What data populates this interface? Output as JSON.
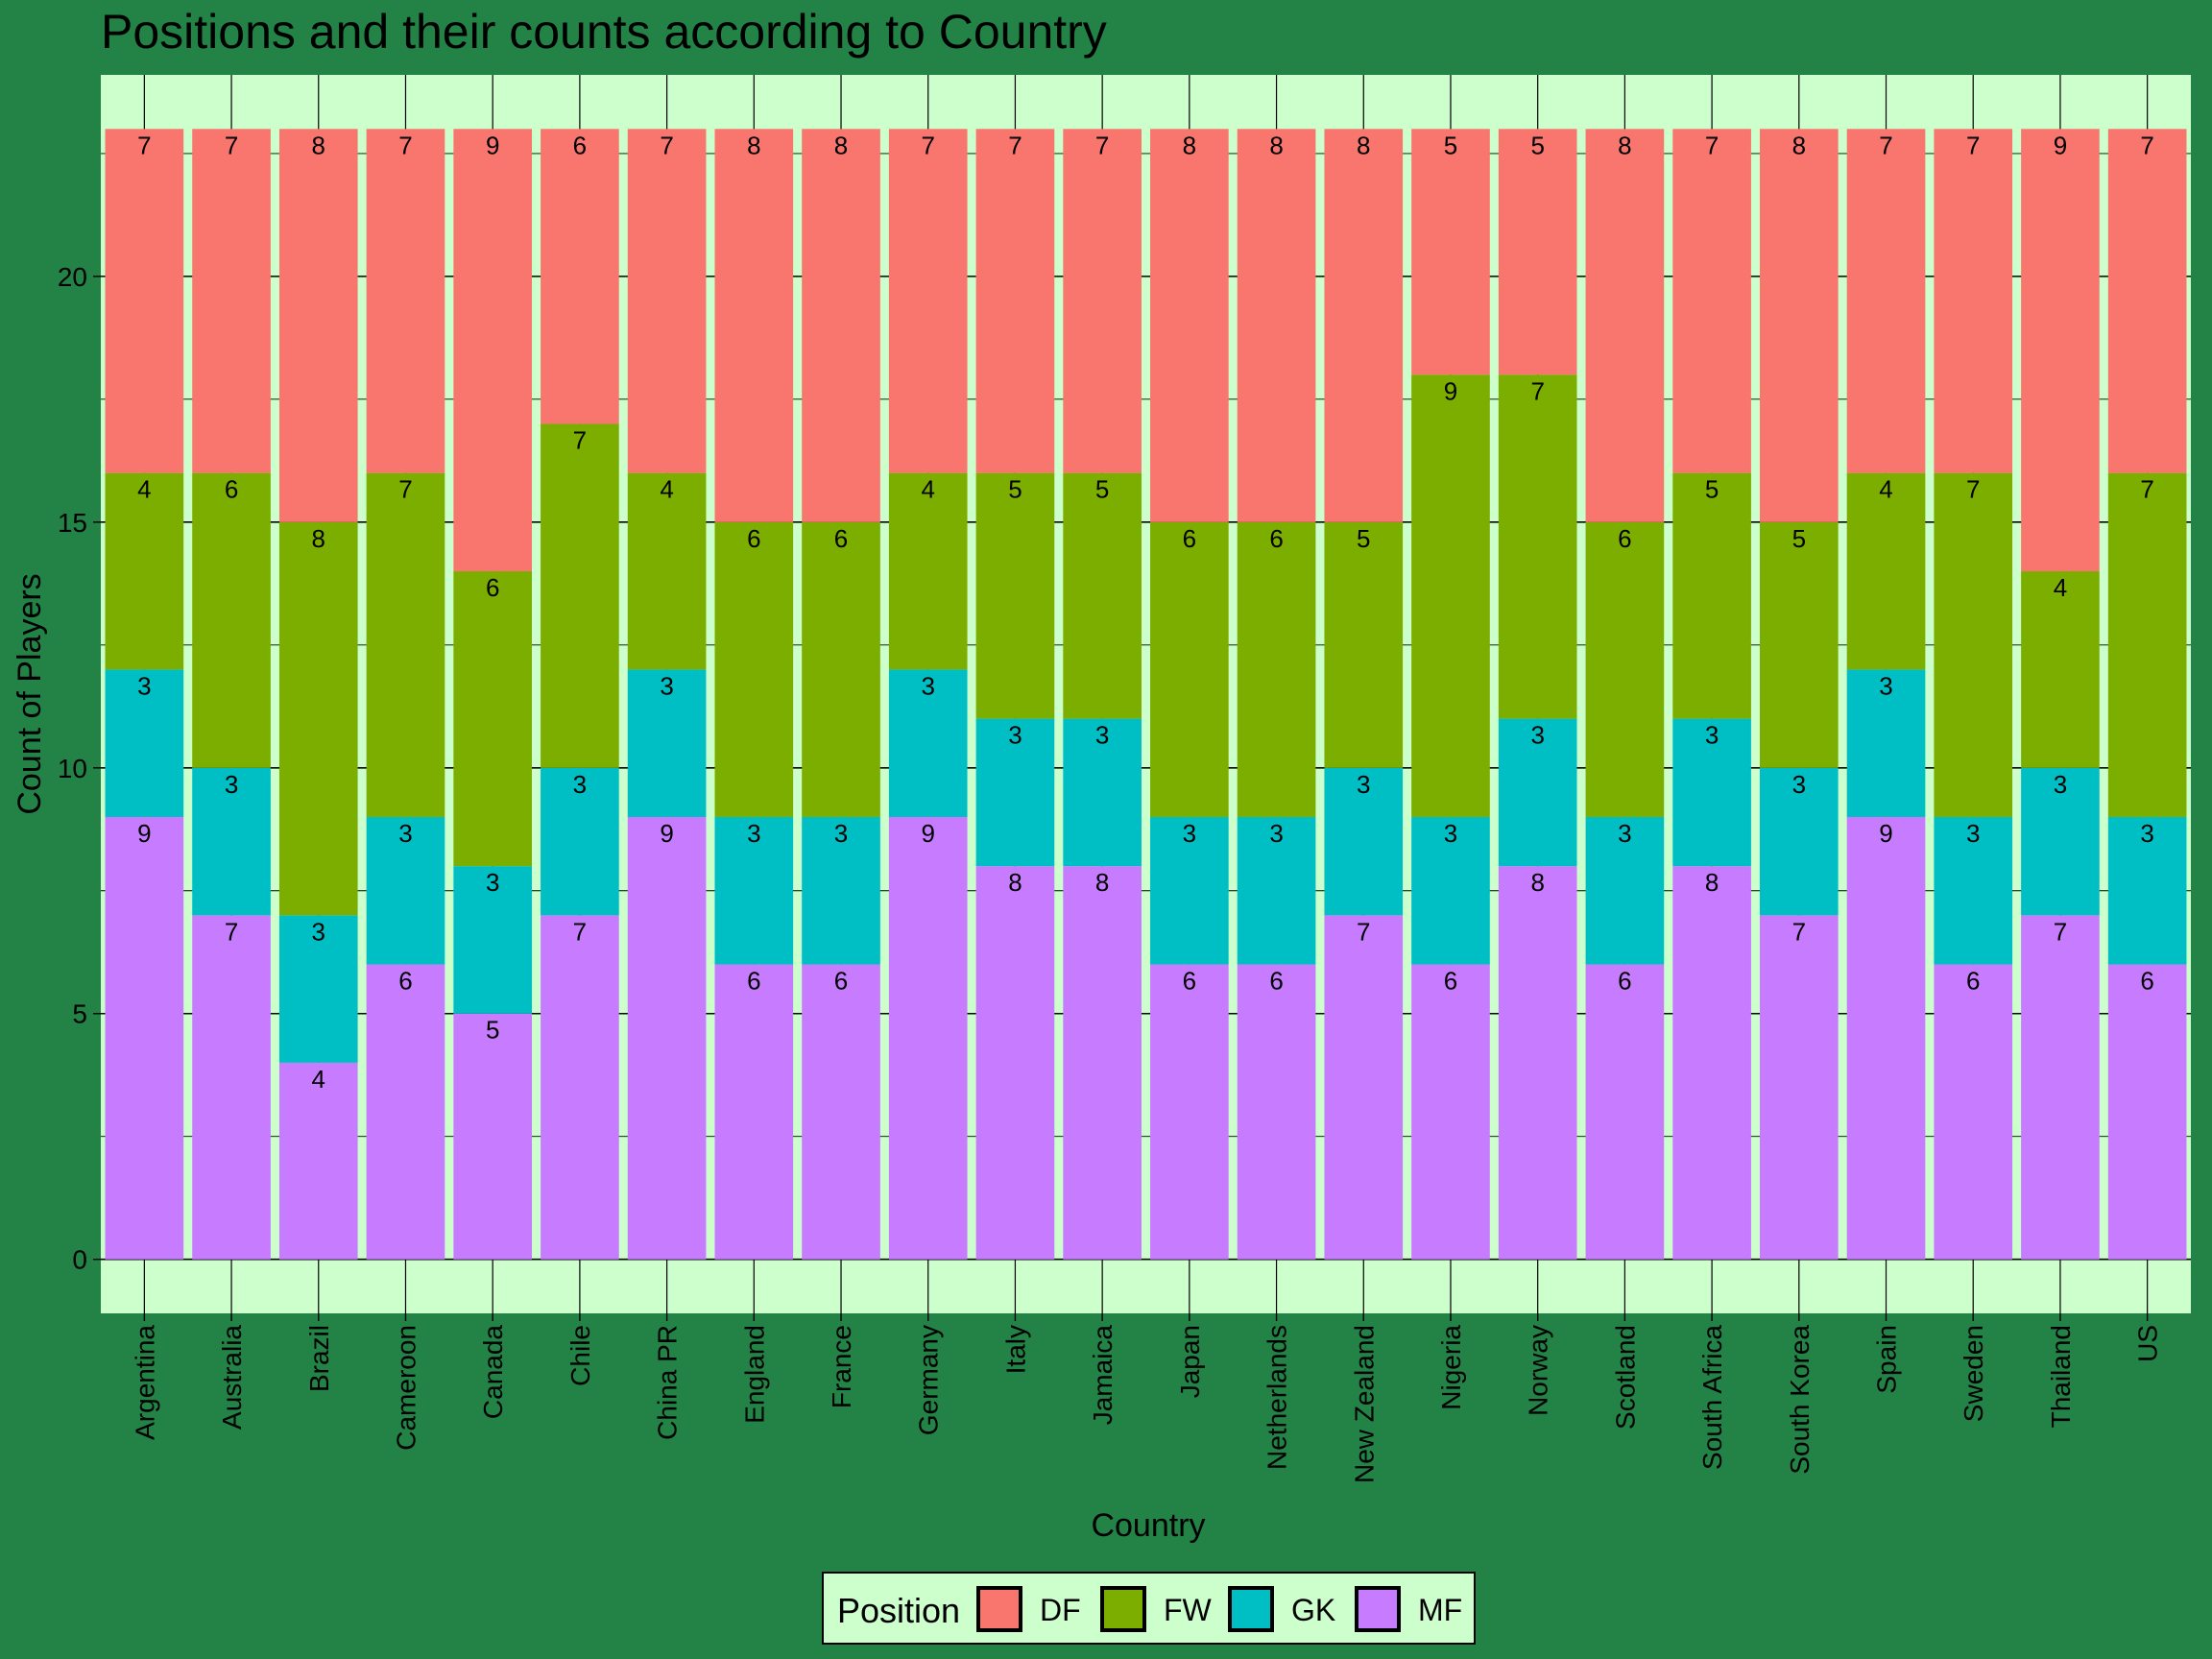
{
  "colors": {
    "background": "#238245",
    "panel": "#CCFFCC",
    "DF": "#F8766D",
    "FW": "#7CAE00",
    "GK": "#00BFC4",
    "MF": "#C77CFF"
  },
  "chart_data": {
    "type": "bar",
    "stacked": true,
    "title": "Positions and their counts according to Country",
    "xlabel": "Country",
    "ylabel": "Count of Players",
    "ylim": [
      -1.1,
      24.1
    ],
    "yticks": [
      0,
      5,
      10,
      15,
      20
    ],
    "grid": true,
    "legend": {
      "title": "Position",
      "placement": "bottom",
      "entries": [
        "DF",
        "FW",
        "GK",
        "MF"
      ]
    },
    "stack_order_bottom_to_top": [
      "MF",
      "GK",
      "FW",
      "DF"
    ],
    "categories": [
      "Argentina",
      "Australia",
      "Brazil",
      "Cameroon",
      "Canada",
      "Chile",
      "China PR",
      "England",
      "France",
      "Germany",
      "Italy",
      "Jamaica",
      "Japan",
      "Netherlands",
      "New Zealand",
      "Nigeria",
      "Norway",
      "Scotland",
      "South Africa",
      "South Korea",
      "Spain",
      "Sweden",
      "Thailand",
      "US"
    ],
    "series": [
      {
        "name": "DF",
        "values": [
          7,
          7,
          8,
          7,
          9,
          6,
          7,
          8,
          8,
          7,
          7,
          7,
          8,
          8,
          8,
          5,
          5,
          8,
          7,
          8,
          7,
          7,
          9,
          7
        ]
      },
      {
        "name": "FW",
        "values": [
          4,
          6,
          8,
          7,
          6,
          7,
          4,
          6,
          6,
          4,
          5,
          5,
          6,
          6,
          5,
          9,
          7,
          6,
          5,
          5,
          4,
          7,
          4,
          7
        ]
      },
      {
        "name": "GK",
        "values": [
          3,
          3,
          3,
          3,
          3,
          3,
          3,
          3,
          3,
          3,
          3,
          3,
          3,
          3,
          3,
          3,
          3,
          3,
          3,
          3,
          3,
          3,
          3,
          3
        ]
      },
      {
        "name": "MF",
        "values": [
          9,
          7,
          4,
          6,
          5,
          7,
          9,
          6,
          6,
          9,
          8,
          8,
          6,
          6,
          7,
          6,
          8,
          6,
          8,
          7,
          9,
          6,
          7,
          6
        ]
      }
    ]
  }
}
